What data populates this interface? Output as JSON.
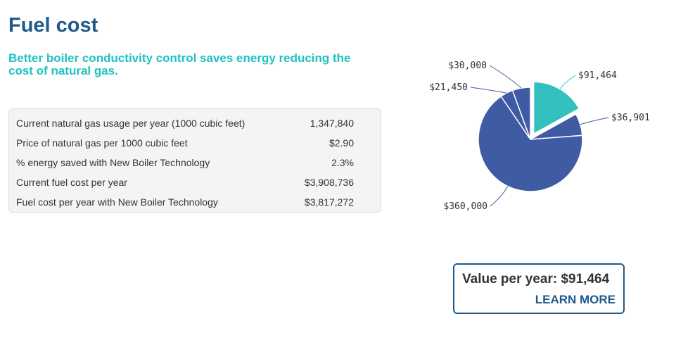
{
  "header": {
    "title": "Fuel cost",
    "subtitle": "Better boiler conductivity control saves energy reducing the cost of natural gas."
  },
  "table": {
    "rows": [
      {
        "label": "Current natural gas usage per year (1000 cubic feet)",
        "value": "1,347,840"
      },
      {
        "label": "Price of natural gas per 1000 cubic feet",
        "value": "$2.90"
      },
      {
        "label": "% energy saved with New Boiler Technology",
        "value": "2.3%"
      },
      {
        "label": "Current fuel cost per year",
        "value": "$3,908,736"
      },
      {
        "label": "Fuel cost per year with New Boiler Technology",
        "value": "$3,817,272"
      }
    ]
  },
  "value_card": {
    "text": "Value per year: $91,464",
    "link": "LEARN MORE"
  },
  "colors": {
    "title": "#1f5a8c",
    "subtitle": "#1fc1c1",
    "highlight_slice": "#33c0bf",
    "other_slices": "#3e5ba3"
  },
  "chart_data": {
    "type": "pie",
    "slices": [
      {
        "label": "$91,464",
        "value": 91464,
        "color": "#33c0bf",
        "exploded": true
      },
      {
        "label": "$36,901",
        "value": 36901,
        "color": "#3e5ba3"
      },
      {
        "label": "$360,000",
        "value": 360000,
        "color": "#3e5ba3"
      },
      {
        "label": "$21,450",
        "value": 21450,
        "color": "#3e5ba3"
      },
      {
        "label": "$30,000",
        "value": 30000,
        "color": "#3e5ba3"
      }
    ]
  }
}
